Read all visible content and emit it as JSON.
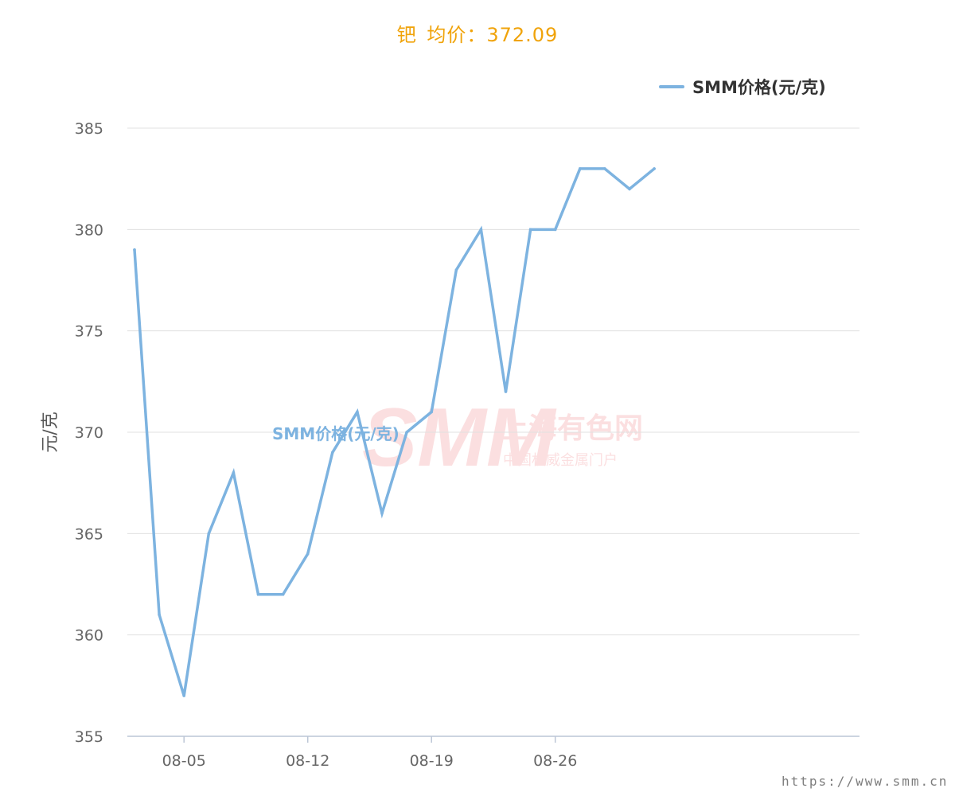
{
  "header": {
    "metal": "钯",
    "avg_label": "均价：",
    "avg_value": "372.09"
  },
  "legend": {
    "label": "SMM价格(元/克)",
    "color": "#7db3e0"
  },
  "watermark": {
    "logo_text": "SMM",
    "cn_name": "上海有色网",
    "cn_sub": "中国权威金属门户",
    "url": "https://www.smm.cn"
  },
  "chart_data": {
    "type": "line",
    "title": "钯 均价：372.09",
    "xlabel": "",
    "ylabel": "元/克",
    "ylim": [
      355,
      385
    ],
    "yticks": [
      "385",
      "380",
      "375",
      "370",
      "365",
      "360",
      "355"
    ],
    "xticks": [
      "08-05",
      "08-12",
      "08-19",
      "08-26"
    ],
    "grid": true,
    "legend_position": "top-right",
    "series": [
      {
        "name": "SMM价格(元/克)",
        "color": "#7db3e0",
        "x": [
          "08-01",
          "08-02",
          "08-05",
          "08-06",
          "08-07",
          "08-08",
          "08-09",
          "08-12",
          "08-13",
          "08-14",
          "08-15",
          "08-16",
          "08-19",
          "08-20",
          "08-21",
          "08-22",
          "08-23",
          "08-26",
          "08-27",
          "08-28",
          "08-29",
          "08-30"
        ],
        "values": [
          379,
          361,
          357,
          365,
          368,
          362,
          362,
          364,
          369,
          371,
          366,
          370,
          371,
          378,
          380,
          372,
          380,
          380,
          383,
          383,
          382,
          383
        ]
      }
    ]
  }
}
